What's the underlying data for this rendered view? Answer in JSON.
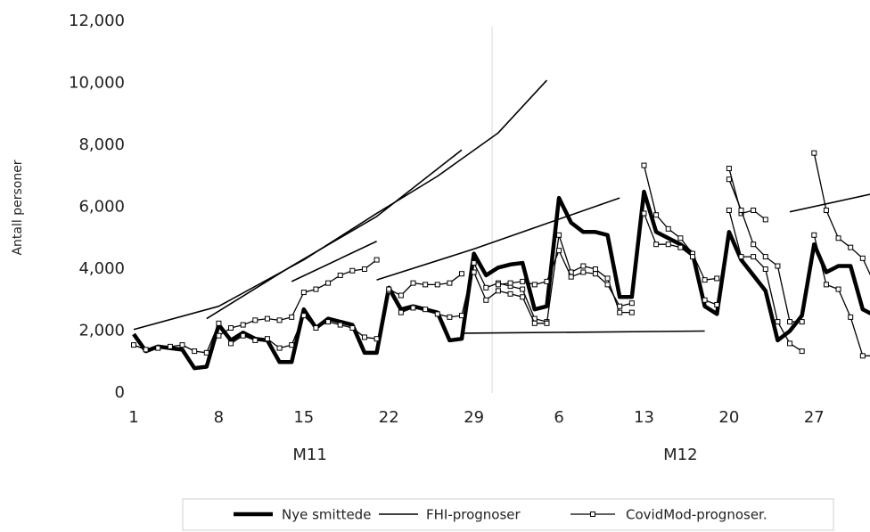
{
  "chart_data": {
    "type": "line",
    "y_label": "Antall personer",
    "xlim": [
      1,
      61.6
    ],
    "ylim": [
      0,
      12000
    ],
    "yticks": [
      0,
      {
        "value": 2000,
        "label": "2,000"
      },
      {
        "value": 4000,
        "label": "4,000"
      },
      {
        "value": 6000,
        "label": "6,000"
      },
      {
        "value": 8000,
        "label": "8,000"
      },
      {
        "value": 10000,
        "label": "10,000"
      },
      {
        "value": 12000,
        "label": "12,000"
      }
    ],
    "xticks": [
      1,
      8,
      15,
      22,
      29,
      {
        "value": 36,
        "label": "6"
      },
      {
        "value": 43,
        "label": "13"
      },
      {
        "value": 50,
        "label": "20"
      },
      {
        "value": 57,
        "label": "27"
      }
    ],
    "x_groups": [
      {
        "label": "M11",
        "start": 1,
        "end": 30
      },
      {
        "label": "M12",
        "start": 31,
        "end": 61
      }
    ],
    "series": [
      {
        "name": "Nye smittede",
        "color": "#000000",
        "marker": "none",
        "segments": [
          {
            "x": [
              1,
              2,
              3,
              4,
              5,
              6,
              7,
              8,
              9,
              10,
              11,
              12,
              13,
              14,
              15,
              16,
              17,
              18,
              19,
              20,
              21,
              22,
              23,
              24,
              25,
              26,
              27,
              28,
              29,
              30,
              31,
              32,
              33,
              34,
              35,
              36,
              37,
              38,
              39,
              40,
              41,
              42,
              43,
              44,
              45,
              46,
              47,
              48,
              49,
              50,
              51,
              52,
              53,
              54,
              55,
              56,
              57,
              58,
              59,
              60,
              61,
              62
            ],
            "values": [
              1900,
              1350,
              1500,
              1450,
              1400,
              800,
              850,
              2200,
              1700,
              1950,
              1750,
              1700,
              1000,
              1000,
              2700,
              2100,
              2400,
              2300,
              2200,
              1300,
              1300,
              3400,
              2700,
              2800,
              2700,
              2600,
              1700,
              1750,
              4500,
              3800,
              4050,
              4150,
              4200,
              2700,
              2800,
              6300,
              5500,
              5200,
              5200,
              5100,
              3100,
              3100,
              6500,
              5200,
              5000,
              4800,
              4500,
              2800,
              2550,
              5200,
              4300,
              3800,
              3300,
              1700,
              2000,
              2500,
              4800,
              3900,
              4100,
              4100,
              2700,
              2500
            ]
          }
        ]
      },
      {
        "name": "FHI-prognoser",
        "color": "#000000",
        "marker": "none",
        "segments": [
          {
            "x": [
              1,
              8,
              15,
              21,
              26,
              31,
              35
            ],
            "values": [
              2050,
              2800,
              4300,
              5800,
              7000,
              8400,
              10100
            ]
          },
          {
            "x": [
              7,
              14,
              21,
              28
            ],
            "values": [
              2400,
              4100,
              5700,
              7850
            ]
          },
          {
            "x": [
              14,
              21
            ],
            "values": [
              3600,
              4900
            ]
          },
          {
            "x": [
              21,
              29,
              41
            ],
            "values": [
              3650,
              4650,
              6300
            ]
          },
          {
            "x": [
              28,
              48
            ],
            "values": [
              1930,
              2000
            ]
          },
          {
            "x": [
              55,
              62
            ],
            "values": [
              5850,
              6450
            ]
          }
        ]
      },
      {
        "name": "CovidMod-prognoser.",
        "color": "#000000",
        "marker": "square",
        "segments": [
          {
            "x": [
              1,
              2,
              3,
              4,
              5,
              6,
              7,
              8,
              9,
              10,
              11,
              12,
              13,
              14,
              15,
              16,
              17,
              18,
              19,
              20,
              21
            ],
            "values": [
              1550,
              1400,
              1450,
              1500,
              1550,
              1350,
              1300,
              2250,
              1600,
              1850,
              1700,
              1750,
              1450,
              1550,
              2500,
              2100,
              2300,
              2200,
              2100,
              1800,
              1750
            ]
          },
          {
            "x": [
              8,
              9,
              10,
              11,
              12,
              13,
              14,
              15,
              16,
              17,
              18,
              19,
              20,
              21
            ],
            "values": [
              1850,
              2100,
              2200,
              2350,
              2400,
              2350,
              2450,
              3250,
              3350,
              3550,
              3800,
              3950,
              4000,
              4300
            ]
          },
          {
            "x": [
              22,
              23,
              24,
              25,
              26,
              27,
              28,
              29,
              30,
              31,
              32,
              33,
              34,
              35
            ],
            "values": [
              3300,
              2600,
              2750,
              2700,
              2550,
              2450,
              2500,
              4200,
              3400,
              3550,
              3450,
              3350,
              2400,
              2300
            ]
          },
          {
            "x": [
              22,
              23,
              24,
              25,
              26,
              27,
              28
            ],
            "values": [
              3350,
              3150,
              3550,
              3500,
              3500,
              3550,
              3850
            ]
          },
          {
            "x": [
              29,
              30,
              31,
              32,
              33,
              34,
              35,
              36,
              37,
              38,
              39,
              40,
              41,
              42
            ],
            "values": [
              3900,
              3000,
              3300,
              3200,
              3100,
              2250,
              2250,
              5100,
              3900,
              4100,
              4000,
              3700,
              2600,
              2600
            ]
          },
          {
            "x": [
              31,
              32,
              33,
              34,
              35,
              36,
              37,
              38,
              39,
              40,
              41,
              42
            ],
            "values": [
              3500,
              3550,
              3600,
              3500,
              3600,
              4600,
              3750,
              3900,
              3850,
              3500,
              2800,
              2900
            ]
          },
          {
            "x": [
              43,
              44,
              45,
              46,
              47,
              48,
              49
            ],
            "values": [
              7350,
              5750,
              5300,
              5000,
              4500,
              3650,
              3700
            ]
          },
          {
            "x": [
              43,
              44,
              45,
              46,
              47,
              48,
              49
            ],
            "values": [
              5800,
              4800,
              4800,
              4700,
              4400,
              3000,
              2850
            ]
          },
          {
            "x": [
              50,
              51,
              52,
              53
            ],
            "values": [
              7250,
              5800,
              5900,
              5600
            ]
          },
          {
            "x": [
              50,
              51,
              52,
              53,
              54,
              55,
              56
            ],
            "values": [
              6900,
              5900,
              4800,
              4400,
              4100,
              2300,
              2300
            ]
          },
          {
            "x": [
              50,
              51,
              52,
              53,
              54,
              55,
              56
            ],
            "values": [
              5900,
              4400,
              4400,
              4000,
              2300,
              1600,
              1350
            ]
          },
          {
            "x": [
              57,
              58,
              59,
              60,
              61,
              62
            ],
            "values": [
              7750,
              5900,
              5000,
              4700,
              4350,
              3500
            ]
          },
          {
            "x": [
              57,
              58,
              59,
              60,
              61,
              62
            ],
            "values": [
              5100,
              3500,
              3350,
              2450,
              1200,
              1200
            ]
          }
        ]
      }
    ]
  }
}
